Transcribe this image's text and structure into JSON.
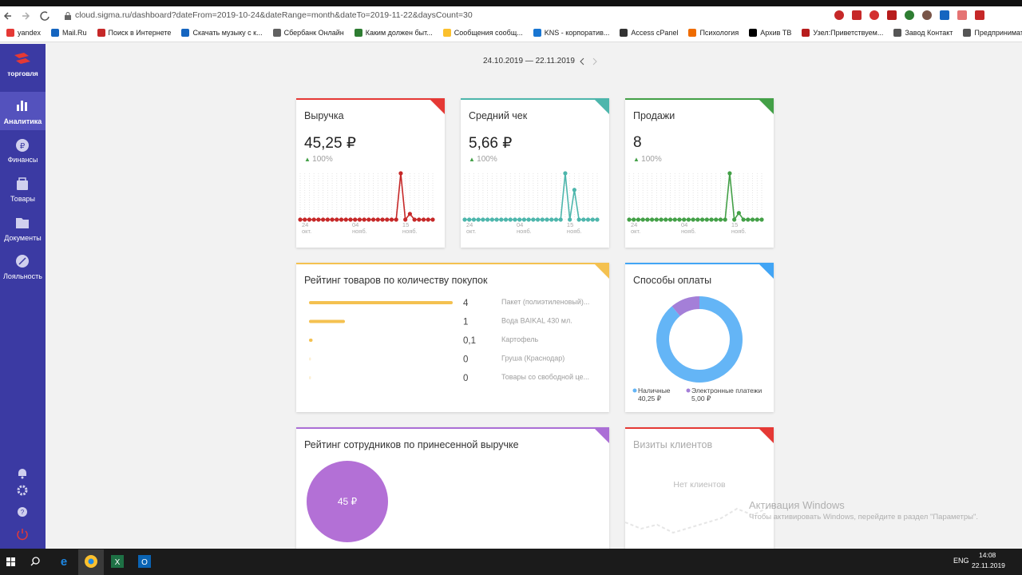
{
  "browser": {
    "url": "cloud.sigma.ru/dashboard?dateFrom=2019-10-24&dateRange=month&dateTo=2019-11-22&daysCount=30",
    "bookmarks": [
      "yandex",
      "Mail.Ru",
      "Поиск в Интернете",
      "Скачать музыку с к...",
      "Сбербанк Онлайн",
      "Каким должен быт...",
      "Сообщения сообщ...",
      "KNS - корпоратив...",
      "Access cPanel",
      "Психология",
      "Архив ТВ",
      "Узел:Приветствуем...",
      "Завод Контакт",
      "Предприниматель"
    ]
  },
  "sidebar": {
    "brand": "торговля",
    "items": [
      "Аналитика",
      "Финансы",
      "Товары",
      "Документы",
      "Лояльность"
    ]
  },
  "date_range": "24.10.2019 — 22.11.2019",
  "kpi_cards": [
    {
      "title": "Выручка",
      "value": "45,25 ₽",
      "change": "100%",
      "accent": "#e53935",
      "chart": {
        "type": "line",
        "color": "#c62828",
        "categories": [
          "24 окт.",
          null,
          null,
          null,
          null,
          null,
          null,
          null,
          null,
          null,
          null,
          "04 нояб.",
          null,
          null,
          null,
          null,
          null,
          null,
          null,
          null,
          null,
          null,
          "15 нояб.",
          null,
          null,
          null,
          null,
          null,
          null,
          null
        ],
        "values": [
          0,
          0,
          0,
          0,
          0,
          0,
          0,
          0,
          0,
          0,
          0,
          0,
          0,
          0,
          0,
          0,
          0,
          0,
          0,
          0,
          0,
          0,
          40.25,
          0,
          5,
          0,
          0,
          0,
          0,
          0
        ]
      }
    },
    {
      "title": "Средний чек",
      "value": "5,66 ₽",
      "change": "100%",
      "accent": "#4db6ac",
      "chart": {
        "type": "line",
        "color": "#4db6ac",
        "categories": [
          "24 окт.",
          null,
          null,
          null,
          null,
          null,
          null,
          null,
          null,
          null,
          null,
          "04 нояб.",
          null,
          null,
          null,
          null,
          null,
          null,
          null,
          null,
          null,
          null,
          "15 нояб.",
          null,
          null,
          null,
          null,
          null,
          null,
          null
        ],
        "values": [
          0,
          0,
          0,
          0,
          0,
          0,
          0,
          0,
          0,
          0,
          0,
          0,
          0,
          0,
          0,
          0,
          0,
          0,
          0,
          0,
          0,
          0,
          6.7,
          0,
          4.3,
          0,
          0,
          0,
          0,
          0
        ]
      }
    },
    {
      "title": "Продажи",
      "value": "8",
      "change": "100%",
      "accent": "#43a047",
      "chart": {
        "type": "line",
        "color": "#43a047",
        "categories": [
          "24 окт.",
          null,
          null,
          null,
          null,
          null,
          null,
          null,
          null,
          null,
          null,
          "04 нояб.",
          null,
          null,
          null,
          null,
          null,
          null,
          null,
          null,
          null,
          null,
          "15 нояб.",
          null,
          null,
          null,
          null,
          null,
          null,
          null
        ],
        "values": [
          0,
          0,
          0,
          0,
          0,
          0,
          0,
          0,
          0,
          0,
          0,
          0,
          0,
          0,
          0,
          0,
          0,
          0,
          0,
          0,
          0,
          0,
          7,
          0,
          1,
          0,
          0,
          0,
          0,
          0
        ]
      }
    }
  ],
  "product_rating": {
    "title": "Рейтинг товаров по количеству покупок",
    "type": "bar",
    "color": "#f4c150",
    "names": [
      "Пакет (полиэтиленовый)...",
      "Вода BAIKAL 430 мл.",
      "Картофель",
      "Груша (Краснодар)",
      "Товары со свободной це..."
    ],
    "values": [
      4,
      1,
      0.1,
      0,
      0
    ],
    "value_labels": [
      "4",
      "1",
      "0,1",
      "0",
      "0"
    ]
  },
  "payment_methods": {
    "title": "Способы оплаты",
    "type": "pie",
    "categories": [
      "Наличные",
      "Электронные платежи"
    ],
    "values": [
      40.25,
      5.0
    ],
    "value_labels": [
      "40,25 ₽",
      "5,00 ₽"
    ],
    "colors": [
      "#64b5f6",
      "#a47fd8"
    ]
  },
  "employee_rating": {
    "title": "Рейтинг сотрудников по принесенной выручке",
    "value": 45,
    "value_label": "45 ₽",
    "color": "#b370d6"
  },
  "client_visits": {
    "title": "Визиты клиентов",
    "empty_text": "Нет клиентов"
  },
  "watermark": {
    "title": "Активация Windows",
    "text": "Чтобы активировать Windows, перейдите в раздел \"Параметры\"."
  },
  "taskbar": {
    "language": "ENG",
    "time": "14:08",
    "date": "22.11.2019"
  }
}
